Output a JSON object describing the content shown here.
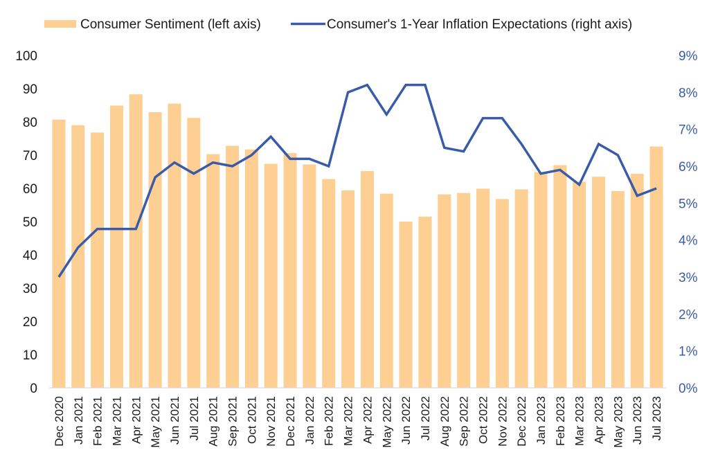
{
  "chart_data": {
    "type": "bar+line",
    "title": "",
    "legend": {
      "placement": "top",
      "entries": [
        {
          "label": "Consumer Sentiment (left axis)",
          "kind": "bar",
          "color": "#fecf92"
        },
        {
          "label": "Consumer's 1-Year Inflation Expectations (right axis)",
          "kind": "line",
          "color": "#3a5ba8"
        }
      ]
    },
    "categories": [
      "Dec 2020",
      "Jan 2021",
      "Feb 2021",
      "Mar 2021",
      "Apr 2021",
      "May 2021",
      "Jun 2021",
      "Jul 2021",
      "Aug 2021",
      "Sep 2021",
      "Oct 2021",
      "Nov 2021",
      "Dec 2021",
      "Jan 2022",
      "Feb 2022",
      "Mar 2022",
      "Apr 2022",
      "May 2022",
      "Jun 2022",
      "Jul 2022",
      "Aug 2022",
      "Sep 2022",
      "Oct 2022",
      "Nov 2022",
      "Dec 2022",
      "Jan 2023",
      "Feb 2023",
      "Mar 2023",
      "Apr 2023",
      "May 2023",
      "Jun 2023",
      "Jul 2023"
    ],
    "series": [
      {
        "name": "Consumer Sentiment (left axis)",
        "type": "bar",
        "axis": "left",
        "color": "#fecf92",
        "values": [
          80.7,
          79.0,
          76.8,
          84.9,
          88.3,
          82.9,
          85.5,
          81.2,
          70.3,
          72.8,
          71.7,
          67.4,
          70.6,
          67.2,
          62.8,
          59.4,
          65.2,
          58.4,
          50.0,
          51.5,
          58.2,
          58.6,
          59.9,
          56.8,
          59.7,
          64.9,
          67.0,
          62.0,
          63.5,
          59.2,
          64.4,
          72.6
        ]
      },
      {
        "name": "Consumer's 1-Year Inflation Expectations (right axis)",
        "type": "line",
        "axis": "right",
        "color": "#3a5ba8",
        "unit": "%",
        "values": [
          3.0,
          3.8,
          4.3,
          4.3,
          4.3,
          5.7,
          6.1,
          5.8,
          6.1,
          6.0,
          6.3,
          6.8,
          6.2,
          6.2,
          6.0,
          8.0,
          8.2,
          7.4,
          8.2,
          8.2,
          6.5,
          6.4,
          7.3,
          7.3,
          6.6,
          5.8,
          5.9,
          5.5,
          6.6,
          6.3,
          5.2,
          5.4
        ]
      }
    ],
    "left_axis": {
      "label": "",
      "ylim": [
        0,
        100
      ],
      "ticks": [
        0,
        10,
        20,
        30,
        40,
        50,
        60,
        70,
        80,
        90,
        100
      ],
      "tick_labels": [
        "0",
        "10",
        "20",
        "30",
        "40",
        "50",
        "60",
        "70",
        "80",
        "90",
        "100"
      ],
      "color": "#1a1a1a"
    },
    "right_axis": {
      "label": "",
      "ylim": [
        0,
        9
      ],
      "ticks": [
        0,
        1,
        2,
        3,
        4,
        5,
        6,
        7,
        8,
        9
      ],
      "tick_labels": [
        "0%",
        "1%",
        "2%",
        "3%",
        "4%",
        "5%",
        "6%",
        "7%",
        "8%",
        "9%"
      ],
      "color": "#3a5ba8"
    },
    "xlabel": "",
    "x_tick_rotation": "vertical",
    "grid": false
  }
}
